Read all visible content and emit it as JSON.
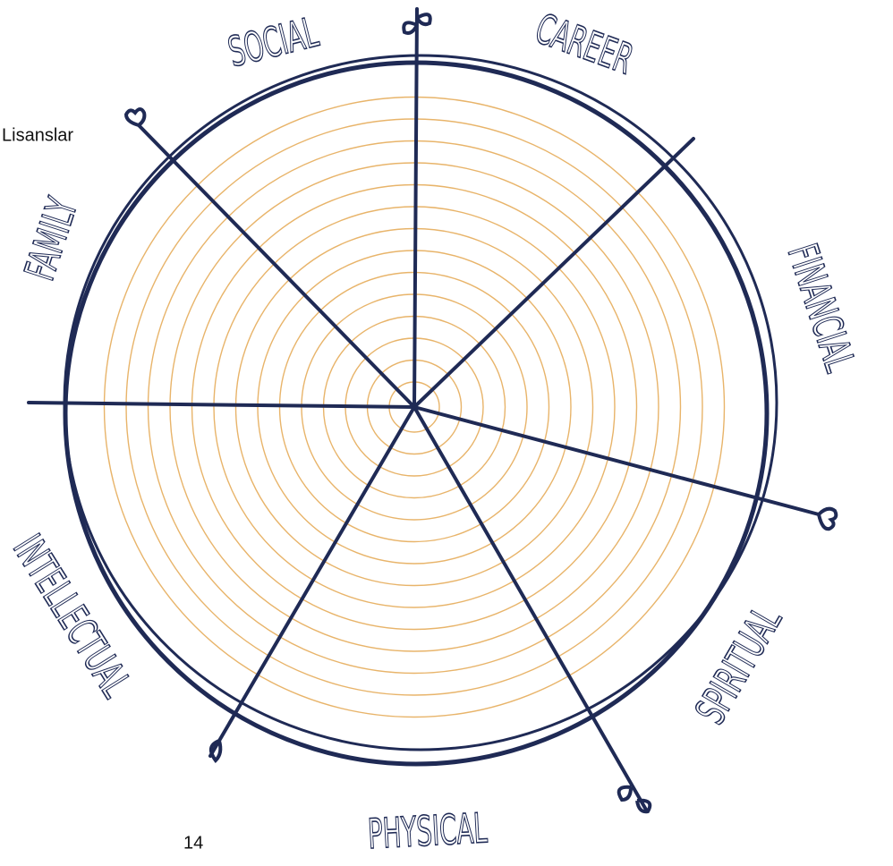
{
  "header": {
    "link": "Lisanslar"
  },
  "wheel": {
    "segments": [
      {
        "label": "SOCIAL"
      },
      {
        "label": "CAREER"
      },
      {
        "label": "FINANCIAL"
      },
      {
        "label": "SPIRITUAL"
      },
      {
        "label": "PHYSICAL"
      },
      {
        "label": "INTELLECTUAL"
      },
      {
        "label": "FAMILY"
      }
    ]
  },
  "footer": {
    "page": "14"
  }
}
